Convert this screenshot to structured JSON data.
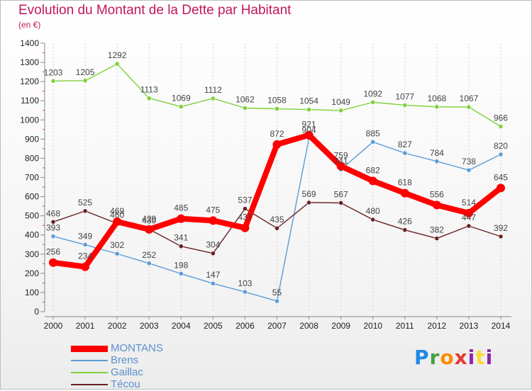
{
  "title": "Evolution du Montant de la Dette par Habitant",
  "subtitle": "(en €)",
  "logo_text": "Proxiti",
  "chart_data": {
    "type": "line",
    "title": "Evolution du Montant de la Dette par Habitant",
    "subtitle": "(en €)",
    "xlabel": "",
    "ylabel": "",
    "categories": [
      "2000",
      "2001",
      "2002",
      "2003",
      "2004",
      "2005",
      "2006",
      "2007",
      "2008",
      "2009",
      "2010",
      "2011",
      "2012",
      "2013",
      "2014"
    ],
    "ylim": [
      0,
      1400
    ],
    "yticks": [
      0,
      100,
      200,
      300,
      400,
      500,
      600,
      700,
      800,
      900,
      1000,
      1100,
      1200,
      1300,
      1400
    ],
    "grid": "vertical",
    "legend": "bottom-left",
    "series": [
      {
        "name": "MONTANS",
        "color": "#ff0000",
        "values": [
          256,
          234,
          469,
          429,
          485,
          475,
          437,
          872,
          921,
          759,
          682,
          618,
          556,
          514,
          645
        ]
      },
      {
        "name": "Brens",
        "color": "#5b9bd5",
        "values": [
          393,
          349,
          302,
          252,
          198,
          147,
          103,
          55,
          904,
          741,
          885,
          827,
          784,
          738,
          820
        ]
      },
      {
        "name": "Gaillac",
        "color": "#7fd13b",
        "values": [
          1203,
          1205,
          1292,
          1113,
          1069,
          1112,
          1062,
          1058,
          1054,
          1049,
          1092,
          1077,
          1068,
          1067,
          966
        ]
      },
      {
        "name": "Técou",
        "color": "#6b2020",
        "values": [
          468,
          525,
          460,
          430,
          341,
          304,
          537,
          435,
          569,
          567,
          480,
          426,
          382,
          447,
          392
        ]
      }
    ]
  }
}
